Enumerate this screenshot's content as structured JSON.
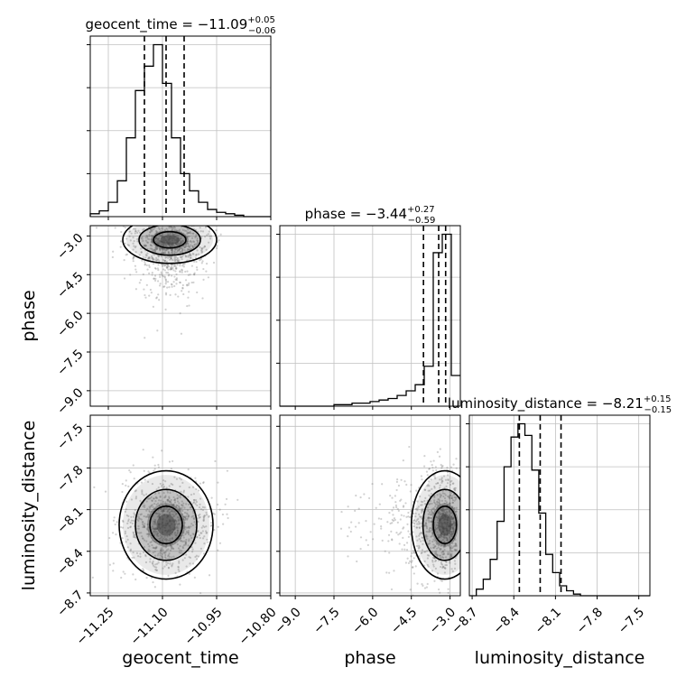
{
  "chart_data": {
    "type": "corner",
    "parameters": [
      {
        "key": "geocent_time",
        "label": "geocent_time",
        "title_prefix": "geocent_time = ",
        "median": "−11.09",
        "plus": "+0.05",
        "minus": "−0.06",
        "range": [
          -11.3,
          -10.8
        ],
        "ticks": [
          -11.25,
          -11.1,
          -10.95,
          -10.8
        ],
        "tick_labels": [
          "−11.25",
          "−11.10",
          "−10.95",
          "−10.80"
        ],
        "quantiles": [
          -11.15,
          -11.09,
          -11.04
        ],
        "hist_edges_start": -11.3,
        "hist_bin_width": 0.025,
        "hist_counts": [
          2,
          4,
          10,
          25,
          55,
          88,
          105,
          120,
          93,
          55,
          30,
          18,
          10,
          5,
          3,
          2,
          1,
          0,
          0,
          0
        ]
      },
      {
        "key": "phase",
        "label": "phase",
        "title_prefix": "phase = ",
        "median": "−3.44",
        "plus": "+0.27",
        "minus": "−0.59",
        "range": [
          -9.6,
          -2.6
        ],
        "ticks": [
          -9.0,
          -7.5,
          -6.0,
          -4.5,
          -3.0
        ],
        "tick_labels": [
          "−9.0",
          "−7.5",
          "−6.0",
          "−4.5",
          "−3.0"
        ],
        "quantiles": [
          -4.03,
          -3.44,
          -3.17
        ],
        "hist_edges_start": -9.6,
        "hist_bin_width": 0.35,
        "hist_counts": [
          0,
          0,
          0,
          0,
          0,
          0,
          1,
          1,
          2,
          2,
          3,
          4,
          5,
          7,
          10,
          14,
          26,
          100,
          112,
          20
        ]
      },
      {
        "key": "luminosity_distance",
        "label": "luminosity_distance",
        "title_prefix": "luminosity_distance = ",
        "median": "−8.21",
        "plus": "+0.15",
        "minus": "−0.15",
        "range": [
          -8.72,
          -7.42
        ],
        "ticks": [
          -8.7,
          -8.4,
          -8.1,
          -7.8,
          -7.5
        ],
        "tick_labels": [
          "−8.7",
          "−8.4",
          "−8.1",
          "−7.8",
          "−7.5"
        ],
        "quantiles": [
          -8.36,
          -8.21,
          -8.06
        ],
        "hist_edges_start": -8.72,
        "hist_bin_width": 0.05,
        "hist_counts": [
          0,
          4,
          10,
          22,
          45,
          78,
          96,
          104,
          97,
          76,
          50,
          25,
          14,
          6,
          3,
          1,
          0,
          0,
          0,
          0,
          0,
          0,
          0,
          0,
          0,
          0
        ]
      }
    ],
    "joint": [
      {
        "x": "geocent_time",
        "y": "phase",
        "mode_x": -11.08,
        "mode_y": -3.15,
        "spread_x": 0.05,
        "spread_y": 0.35
      },
      {
        "x": "geocent_time",
        "y": "luminosity_distance",
        "mode_x": -11.09,
        "mode_y": -8.21,
        "spread_x": 0.05,
        "spread_y": 0.15
      },
      {
        "x": "phase",
        "y": "luminosity_distance",
        "mode_x": -3.2,
        "mode_y": -8.21,
        "spread_x": 0.5,
        "spread_y": 0.15
      }
    ],
    "grid": true
  }
}
